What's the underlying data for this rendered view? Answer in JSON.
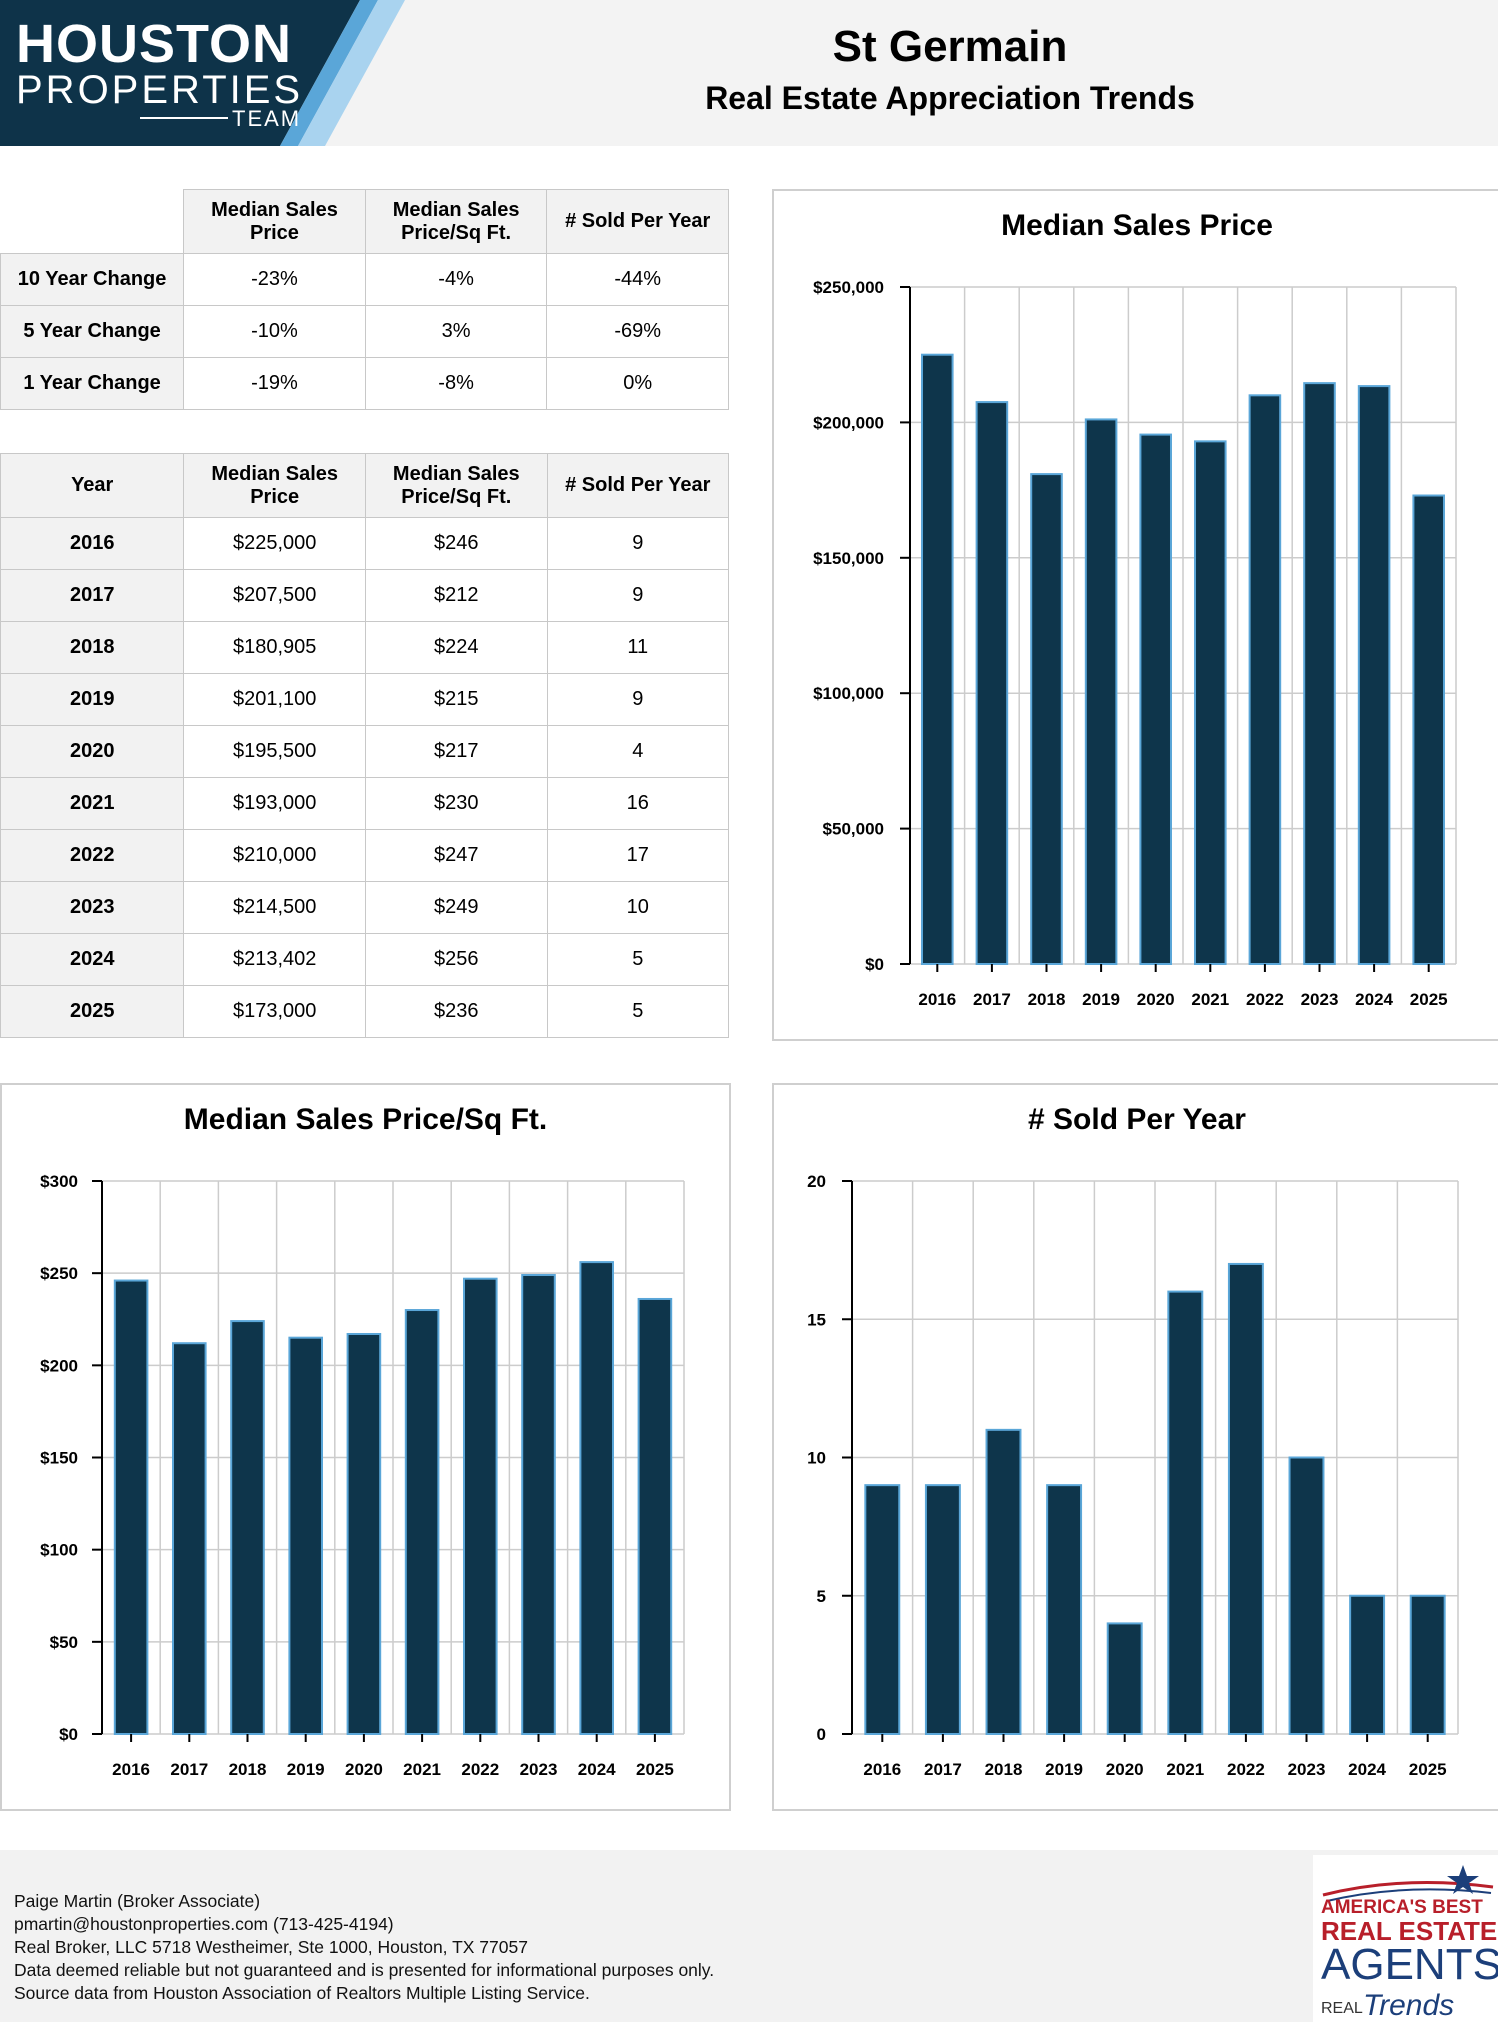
{
  "brand": {
    "line1": "HOUSTON",
    "line2": "PROPERTIES",
    "line3": "TEAM",
    "colors": {
      "navy": "#0e3349",
      "light_blue": "#a9d3ef",
      "mid_blue": "#5aa6d8"
    }
  },
  "header": {
    "title": "St Germain",
    "subtitle": "Real Estate Appreciation Trends"
  },
  "change_table": {
    "columns": [
      "Median Sales Price",
      "Median Sales Price/Sq Ft.",
      "# Sold Per Year"
    ],
    "rows": [
      {
        "label": "10 Year Change",
        "values": [
          "-23%",
          "-4%",
          "-44%"
        ]
      },
      {
        "label": "5 Year Change",
        "values": [
          "-10%",
          "3%",
          "-69%"
        ]
      },
      {
        "label": "1 Year Change",
        "values": [
          "-19%",
          "-8%",
          "0%"
        ]
      }
    ]
  },
  "year_table": {
    "columns": [
      "Year",
      "Median Sales Price",
      "Median Sales Price/Sq Ft.",
      "# Sold Per Year"
    ],
    "rows": [
      [
        "2016",
        "$225,000",
        "$246",
        "9"
      ],
      [
        "2017",
        "$207,500",
        "$212",
        "9"
      ],
      [
        "2018",
        "$180,905",
        "$224",
        "11"
      ],
      [
        "2019",
        "$201,100",
        "$215",
        "9"
      ],
      [
        "2020",
        "$195,500",
        "$217",
        "4"
      ],
      [
        "2021",
        "$193,000",
        "$230",
        "16"
      ],
      [
        "2022",
        "$210,000",
        "$247",
        "17"
      ],
      [
        "2023",
        "$214,500",
        "$249",
        "10"
      ],
      [
        "2024",
        "$213,402",
        "$256",
        "5"
      ],
      [
        "2025",
        "$173,000",
        "$236",
        "5"
      ]
    ]
  },
  "chart_data": [
    {
      "id": "price",
      "type": "bar",
      "title": "Median Sales Price",
      "categories": [
        "2016",
        "2017",
        "2018",
        "2019",
        "2020",
        "2021",
        "2022",
        "2023",
        "2024",
        "2025"
      ],
      "values": [
        225000,
        207500,
        180905,
        201100,
        195500,
        193000,
        210000,
        214500,
        213402,
        173000
      ],
      "ylim": [
        0,
        250000
      ],
      "yticks": [
        0,
        50000,
        100000,
        150000,
        200000,
        250000
      ],
      "ytick_labels": [
        "$0",
        "$50,000",
        "$100,000",
        "$150,000",
        "$200,000",
        "$250,000"
      ],
      "xlabel": "",
      "ylabel": "",
      "grid": true
    },
    {
      "id": "sqft",
      "type": "bar",
      "title": "Median Sales Price/Sq Ft.",
      "categories": [
        "2016",
        "2017",
        "2018",
        "2019",
        "2020",
        "2021",
        "2022",
        "2023",
        "2024",
        "2025"
      ],
      "values": [
        246,
        212,
        224,
        215,
        217,
        230,
        247,
        249,
        256,
        236
      ],
      "ylim": [
        0,
        300
      ],
      "yticks": [
        0,
        50,
        100,
        150,
        200,
        250,
        300
      ],
      "ytick_labels": [
        "$0",
        "$50",
        "$100",
        "$150",
        "$200",
        "$250",
        "$300"
      ],
      "xlabel": "",
      "ylabel": "",
      "grid": true
    },
    {
      "id": "sold",
      "type": "bar",
      "title": "# Sold Per Year",
      "categories": [
        "2016",
        "2017",
        "2018",
        "2019",
        "2020",
        "2021",
        "2022",
        "2023",
        "2024",
        "2025"
      ],
      "values": [
        9,
        9,
        11,
        9,
        4,
        16,
        17,
        10,
        5,
        5
      ],
      "ylim": [
        0,
        20
      ],
      "yticks": [
        0,
        5,
        10,
        15,
        20
      ],
      "ytick_labels": [
        "0",
        "5",
        "10",
        "15",
        "20"
      ],
      "xlabel": "",
      "ylabel": "",
      "grid": true
    }
  ],
  "chart_colors": {
    "bar_fill": "#0e354b",
    "bar_edge": "#5aa6d8",
    "grid": "#cccccc"
  },
  "footer": {
    "lines": [
      "Paige Martin (Broker Associate)",
      "pmartin@houstonproperties.com (713-425-4194)",
      "Real Broker, LLC 5718 Westheimer, Ste 1000, Houston, TX 77057",
      "Data deemed reliable but not guaranteed and is presented for informational purposes only.",
      "Source data from Houston Association of Realtors Multiple Listing Service."
    ]
  },
  "badge": {
    "line1": "AMERICA'S BEST",
    "line2": "REAL ESTATE",
    "line3": "AGENTS",
    "line4": "REAL",
    "line5": "Trends"
  }
}
